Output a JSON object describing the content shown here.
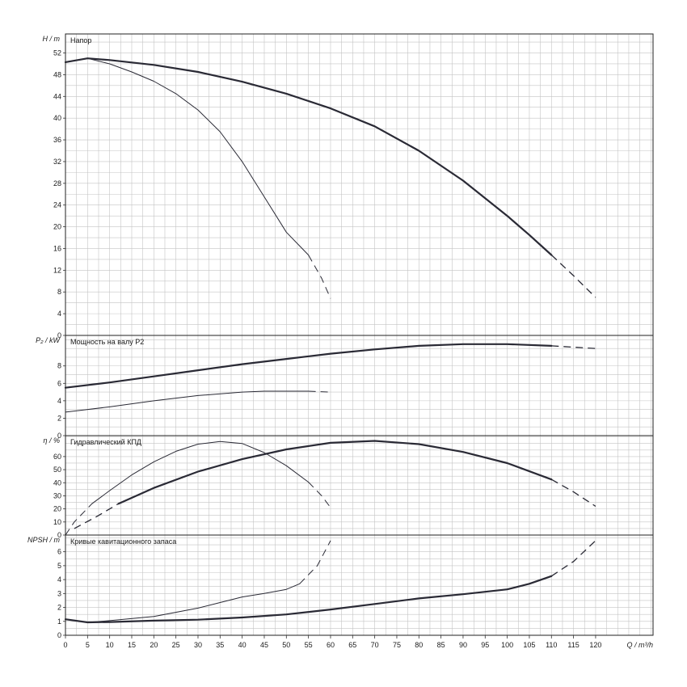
{
  "chart_data": {
    "type": "line",
    "x_axis": {
      "label": "Q / m³/h",
      "ticks": [
        0,
        5,
        10,
        15,
        20,
        25,
        30,
        35,
        40,
        45,
        50,
        55,
        60,
        65,
        70,
        75,
        80,
        85,
        90,
        95,
        100,
        105,
        110,
        115,
        120
      ],
      "range": [
        0,
        133
      ],
      "grid_step": 2.5
    },
    "panels": [
      {
        "id": "head",
        "title": "Напор",
        "ylabel": "H / m",
        "yticks": [
          0,
          4,
          8,
          12,
          16,
          20,
          24,
          28,
          32,
          36,
          40,
          44,
          48,
          52
        ],
        "ylim": [
          0,
          55.5
        ],
        "grid_step": 2,
        "series": [
          {
            "weight": "bold",
            "solid": [
              [
                0,
                50.3
              ],
              [
                5,
                51
              ],
              [
                10,
                50.7
              ],
              [
                20,
                49.8
              ],
              [
                30,
                48.5
              ],
              [
                40,
                46.7
              ],
              [
                50,
                44.5
              ],
              [
                60,
                41.8
              ],
              [
                70,
                38.5
              ],
              [
                80,
                34
              ],
              [
                90,
                28.5
              ],
              [
                100,
                22
              ],
              [
                105,
                18.5
              ],
              [
                110,
                14.8
              ]
            ],
            "dashed": [
              [
                110,
                14.8
              ],
              [
                115,
                11
              ],
              [
                120,
                7
              ]
            ]
          },
          {
            "weight": "thin",
            "solid": [
              [
                0,
                50.3
              ],
              [
                5,
                51
              ],
              [
                10,
                50
              ],
              [
                15,
                48.5
              ],
              [
                20,
                46.8
              ],
              [
                25,
                44.5
              ],
              [
                30,
                41.5
              ],
              [
                35,
                37.5
              ],
              [
                40,
                32
              ],
              [
                45,
                25.5
              ],
              [
                50,
                19
              ],
              [
                55,
                14.8
              ]
            ],
            "dashed": [
              [
                55,
                14.8
              ],
              [
                58,
                10.5
              ],
              [
                60,
                6.8
              ]
            ]
          }
        ]
      },
      {
        "id": "power",
        "title": "Мощность на валу P2",
        "ylabel": "P₂ / kW",
        "yticks": [
          0,
          2,
          4,
          6,
          8
        ],
        "ylim": [
          0,
          11.5
        ],
        "grid_step": 1,
        "series": [
          {
            "weight": "bold",
            "solid": [
              [
                0,
                5.5
              ],
              [
                10,
                6.1
              ],
              [
                20,
                6.8
              ],
              [
                30,
                7.5
              ],
              [
                40,
                8.2
              ],
              [
                50,
                8.8
              ],
              [
                60,
                9.4
              ],
              [
                70,
                9.9
              ],
              [
                80,
                10.3
              ],
              [
                90,
                10.5
              ],
              [
                100,
                10.5
              ],
              [
                110,
                10.3
              ]
            ],
            "dashed": [
              [
                110,
                10.3
              ],
              [
                120,
                10
              ]
            ]
          },
          {
            "weight": "thin",
            "solid": [
              [
                0,
                2.7
              ],
              [
                10,
                3.3
              ],
              [
                20,
                4
              ],
              [
                30,
                4.6
              ],
              [
                40,
                5
              ],
              [
                45,
                5.1
              ],
              [
                55,
                5.1
              ]
            ],
            "dashed": [
              [
                55,
                5.1
              ],
              [
                60,
                5
              ]
            ]
          }
        ]
      },
      {
        "id": "eff",
        "title": "Гидравлический КПД",
        "ylabel": "η / %",
        "yticks": [
          0,
          10,
          20,
          30,
          40,
          50,
          60
        ],
        "ylim": [
          0,
          76
        ],
        "grid_step": 5,
        "series": [
          {
            "weight": "bold",
            "solid": [
              [
                12,
                24
              ],
              [
                20,
                36
              ],
              [
                30,
                48.5
              ],
              [
                40,
                58
              ],
              [
                50,
                65.5
              ],
              [
                60,
                70.5
              ],
              [
                70,
                72
              ],
              [
                80,
                69.5
              ],
              [
                90,
                63.5
              ],
              [
                100,
                55
              ],
              [
                110,
                42.5
              ]
            ],
            "dashed": [
              [
                2,
                5
              ],
              [
                7,
                14
              ],
              [
                12,
                24
              ]
            ]
          },
          {
            "weight": "bold",
            "solid": [],
            "dashed": [
              [
                110,
                42.5
              ],
              [
                115,
                33
              ],
              [
                120,
                22
              ]
            ]
          },
          {
            "weight": "thin",
            "solid": [
              [
                6,
                24
              ],
              [
                10,
                34
              ],
              [
                15,
                46
              ],
              [
                20,
                56
              ],
              [
                25,
                64
              ],
              [
                30,
                69.5
              ],
              [
                35,
                71.5
              ],
              [
                40,
                70
              ],
              [
                45,
                63
              ],
              [
                50,
                53
              ],
              [
                55,
                40.5
              ]
            ],
            "dashed": [
              [
                0,
                0
              ],
              [
                2,
                10
              ],
              [
                6,
                24
              ]
            ]
          },
          {
            "weight": "thin",
            "solid": [],
            "dashed": [
              [
                55,
                40.5
              ],
              [
                58,
                30
              ],
              [
                60,
                21
              ]
            ]
          }
        ]
      },
      {
        "id": "npsh",
        "title": "Кривые кавитационного запаса",
        "ylabel": "NPSH / m",
        "yticks": [
          0,
          1,
          2,
          3,
          4,
          5,
          6
        ],
        "ylim": [
          0,
          7.2
        ],
        "grid_step": 0.5,
        "series": [
          {
            "weight": "bold",
            "solid": [
              [
                0,
                1.15
              ],
              [
                5,
                0.93
              ],
              [
                10,
                0.95
              ],
              [
                20,
                1.05
              ],
              [
                30,
                1.12
              ],
              [
                40,
                1.28
              ],
              [
                50,
                1.5
              ],
              [
                60,
                1.85
              ],
              [
                70,
                2.25
              ],
              [
                80,
                2.65
              ],
              [
                90,
                2.95
              ],
              [
                100,
                3.3
              ],
              [
                105,
                3.7
              ],
              [
                110,
                4.25
              ]
            ],
            "dashed": [
              [
                110,
                4.25
              ],
              [
                115,
                5.3
              ],
              [
                120,
                6.8
              ]
            ]
          },
          {
            "weight": "thin",
            "solid": [
              [
                5,
                0.93
              ],
              [
                10,
                1.05
              ],
              [
                20,
                1.35
              ],
              [
                30,
                1.95
              ],
              [
                35,
                2.35
              ],
              [
                40,
                2.75
              ],
              [
                45,
                3
              ],
              [
                50,
                3.3
              ],
              [
                53,
                3.7
              ]
            ],
            "dashed": [
              [
                53,
                3.7
              ],
              [
                57,
                5
              ],
              [
                60,
                6.8
              ]
            ]
          }
        ]
      }
    ]
  }
}
